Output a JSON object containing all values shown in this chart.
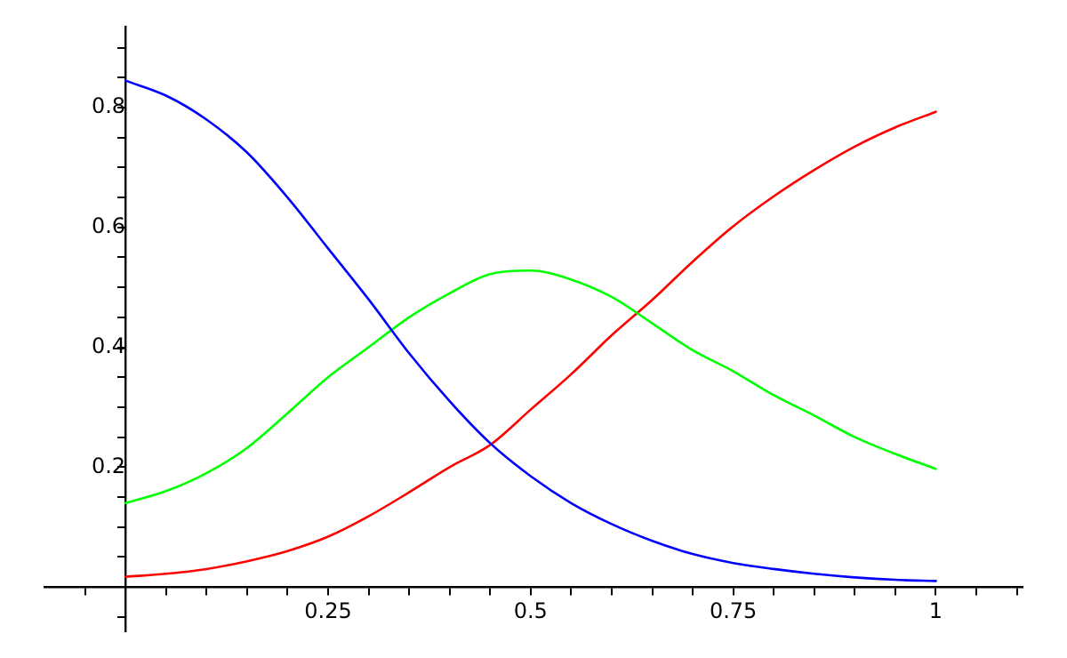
{
  "chart_data": {
    "type": "line",
    "x": [
      0,
      0.05,
      0.1,
      0.15,
      0.2,
      0.25,
      0.3,
      0.35,
      0.4,
      0.45,
      0.5,
      0.55,
      0.6,
      0.65,
      0.7,
      0.75,
      0.8,
      0.85,
      0.9,
      0.95,
      1
    ],
    "series": [
      {
        "color": "#0000ff",
        "values": [
          0.845,
          0.82,
          0.78,
          0.725,
          0.65,
          0.565,
          0.48,
          0.39,
          0.31,
          0.24,
          0.185,
          0.14,
          0.105,
          0.077,
          0.055,
          0.04,
          0.03,
          0.022,
          0.016,
          0.012,
          0.01
        ]
      },
      {
        "color": "#00ff00",
        "values": [
          0.14,
          0.16,
          0.19,
          0.232,
          0.29,
          0.35,
          0.4,
          0.45,
          0.49,
          0.522,
          0.528,
          0.513,
          0.484,
          0.44,
          0.395,
          0.36,
          0.32,
          0.286,
          0.25,
          0.222,
          0.197
        ]
      },
      {
        "color": "#ff0000",
        "values": [
          0.017,
          0.022,
          0.03,
          0.043,
          0.06,
          0.084,
          0.118,
          0.158,
          0.2,
          0.237,
          0.296,
          0.355,
          0.42,
          0.479,
          0.543,
          0.602,
          0.652,
          0.696,
          0.735,
          0.767,
          0.793
        ]
      }
    ],
    "xlim": [
      -0.1,
      1.107
    ],
    "ylim": [
      -0.074,
      0.935
    ],
    "xticks": [
      {
        "value": -0.05,
        "label": null
      },
      {
        "value": 0.05,
        "label": null
      },
      {
        "value": 0.1,
        "label": null
      },
      {
        "value": 0.15,
        "label": null
      },
      {
        "value": 0.2,
        "label": null
      },
      {
        "value": 0.25,
        "label": "0.25"
      },
      {
        "value": 0.3,
        "label": null
      },
      {
        "value": 0.35,
        "label": null
      },
      {
        "value": 0.4,
        "label": null
      },
      {
        "value": 0.45,
        "label": null
      },
      {
        "value": 0.5,
        "label": "0.5"
      },
      {
        "value": 0.55,
        "label": null
      },
      {
        "value": 0.6,
        "label": null
      },
      {
        "value": 0.65,
        "label": null
      },
      {
        "value": 0.7,
        "label": null
      },
      {
        "value": 0.75,
        "label": "0.75"
      },
      {
        "value": 0.8,
        "label": null
      },
      {
        "value": 0.85,
        "label": null
      },
      {
        "value": 0.9,
        "label": null
      },
      {
        "value": 0.95,
        "label": null
      },
      {
        "value": 1,
        "label": "1"
      },
      {
        "value": 1.05,
        "label": null
      },
      {
        "value": 1.1,
        "label": null
      }
    ],
    "yticks": [
      {
        "value": -0.05,
        "label": null
      },
      {
        "value": 0.05,
        "label": null
      },
      {
        "value": 0.1,
        "label": null
      },
      {
        "value": 0.15,
        "label": null
      },
      {
        "value": 0.2,
        "label": "0.2"
      },
      {
        "value": 0.25,
        "label": null
      },
      {
        "value": 0.3,
        "label": null
      },
      {
        "value": 0.35,
        "label": null
      },
      {
        "value": 0.4,
        "label": "0.4"
      },
      {
        "value": 0.45,
        "label": null
      },
      {
        "value": 0.5,
        "label": null
      },
      {
        "value": 0.55,
        "label": null
      },
      {
        "value": 0.6,
        "label": "0.6"
      },
      {
        "value": 0.65,
        "label": null
      },
      {
        "value": 0.7,
        "label": null
      },
      {
        "value": 0.75,
        "label": null
      },
      {
        "value": 0.8,
        "label": "0.8"
      },
      {
        "value": 0.85,
        "label": null
      },
      {
        "value": 0.9,
        "label": null
      }
    ],
    "marker": "none",
    "line_style": "solid",
    "grid": false,
    "legend": false
  }
}
